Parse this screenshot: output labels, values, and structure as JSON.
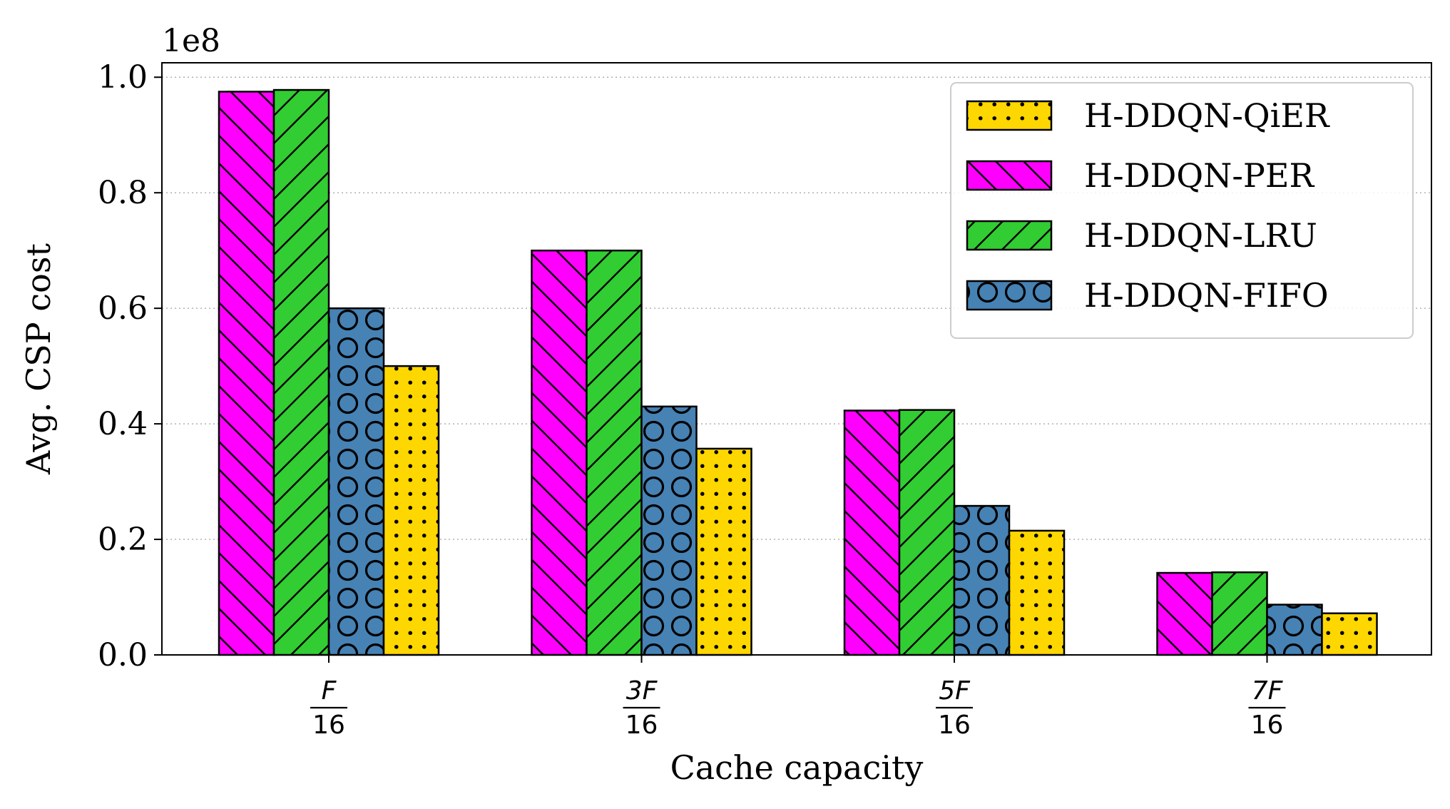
{
  "chart_data": {
    "type": "bar",
    "categories": [
      {
        "num": "F",
        "den": "16"
      },
      {
        "num": "3F",
        "den": "16"
      },
      {
        "num": "5F",
        "den": "16"
      },
      {
        "num": "7F",
        "den": "16"
      }
    ],
    "xlabel": "Cache capacity",
    "ylabel": "Avg. CSP cost",
    "y_multiplier": "1e8",
    "ylim": [
      0,
      1.025
    ],
    "yticks": [
      0.0,
      0.2,
      0.4,
      0.6,
      0.8,
      1.0
    ],
    "ytick_labels": [
      "0.0",
      "0.2",
      "0.4",
      "0.6",
      "0.8",
      "1.0"
    ],
    "grid": "y-dotted",
    "legend_position": "top-right",
    "series": [
      {
        "name": "H-DDQN-PER",
        "values": [
          0.975,
          0.7,
          0.423,
          0.142
        ],
        "color": "#ff00ff",
        "pattern": "backslash-hatch"
      },
      {
        "name": "H-DDQN-LRU",
        "values": [
          0.978,
          0.7,
          0.424,
          0.143
        ],
        "color": "#32cd32",
        "pattern": "slash-hatch"
      },
      {
        "name": "H-DDQN-FIFO",
        "values": [
          0.6,
          0.43,
          0.258,
          0.087
        ],
        "color": "#4682b4",
        "pattern": "circle-hatch"
      },
      {
        "name": "H-DDQN-QiER",
        "values": [
          0.5,
          0.357,
          0.215,
          0.072
        ],
        "color": "#ffd700",
        "pattern": "dot-hatch"
      }
    ],
    "legend_order": [
      "H-DDQN-QiER",
      "H-DDQN-PER",
      "H-DDQN-LRU",
      "H-DDQN-FIFO"
    ]
  }
}
